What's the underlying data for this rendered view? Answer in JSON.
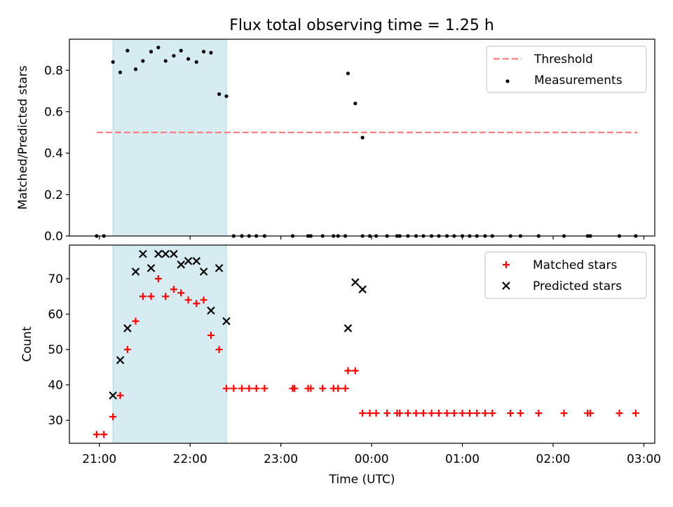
{
  "title": "Flux total observing time = 1.25 h",
  "colors": {
    "shade": "#add8e6",
    "threshold": "#ff7f7f",
    "matched": "#ff0000",
    "predicted": "#000000",
    "measurement": "#000000"
  },
  "chart_data": [
    {
      "type": "scatter",
      "ylabel": "Matched/Predicted stars",
      "ylim": [
        0,
        0.95
      ],
      "yticks": [
        "0.0",
        "0.2",
        "0.4",
        "0.6",
        "0.8"
      ],
      "xlim": [
        20.67,
        27.12
      ],
      "shaded_span": [
        21.15,
        22.4
      ],
      "threshold": {
        "name": "Threshold",
        "y": 0.5,
        "x": [
          20.97,
          26.93
        ]
      },
      "legend": {
        "position": "top-right",
        "entries": [
          "Threshold",
          "Measurements"
        ]
      },
      "series": [
        {
          "name": "Measurements",
          "points": [
            [
              20.97,
              0
            ],
            [
              21.05,
              0
            ],
            [
              21.15,
              0.84
            ],
            [
              21.23,
              0.79
            ],
            [
              21.31,
              0.895
            ],
            [
              21.4,
              0.805
            ],
            [
              21.48,
              0.845
            ],
            [
              21.57,
              0.89
            ],
            [
              21.65,
              0.91
            ],
            [
              21.73,
              0.845
            ],
            [
              21.82,
              0.87
            ],
            [
              21.9,
              0.895
            ],
            [
              21.98,
              0.855
            ],
            [
              22.07,
              0.84
            ],
            [
              22.15,
              0.89
            ],
            [
              22.23,
              0.885
            ],
            [
              22.32,
              0.685
            ],
            [
              22.4,
              0.675
            ],
            [
              22.48,
              0
            ],
            [
              22.57,
              0
            ],
            [
              22.65,
              0
            ],
            [
              22.73,
              0
            ],
            [
              22.82,
              0
            ],
            [
              23.13,
              0
            ],
            [
              23.3,
              0
            ],
            [
              23.33,
              0
            ],
            [
              23.46,
              0
            ],
            [
              23.58,
              0
            ],
            [
              23.63,
              0
            ],
            [
              23.71,
              0
            ],
            [
              23.74,
              0.785
            ],
            [
              23.82,
              0.64
            ],
            [
              23.9,
              0.475
            ],
            [
              23.9,
              0
            ],
            [
              23.98,
              0
            ],
            [
              24.05,
              0
            ],
            [
              24.17,
              0
            ],
            [
              24.28,
              0
            ],
            [
              24.31,
              0
            ],
            [
              24.4,
              0
            ],
            [
              24.49,
              0
            ],
            [
              24.57,
              0
            ],
            [
              24.66,
              0
            ],
            [
              24.74,
              0
            ],
            [
              24.83,
              0
            ],
            [
              24.91,
              0
            ],
            [
              25.0,
              0
            ],
            [
              25.08,
              0
            ],
            [
              25.16,
              0
            ],
            [
              25.25,
              0
            ],
            [
              25.33,
              0
            ],
            [
              25.53,
              0
            ],
            [
              25.64,
              0
            ],
            [
              25.84,
              0
            ],
            [
              26.12,
              0
            ],
            [
              26.38,
              0
            ],
            [
              26.41,
              0
            ],
            [
              26.73,
              0
            ],
            [
              26.91,
              0
            ]
          ]
        }
      ]
    },
    {
      "type": "scatter",
      "ylabel": "Count",
      "xlabel": "Time (UTC)",
      "ylim": [
        23.5,
        79.5
      ],
      "yticks": [
        "30",
        "40",
        "50",
        "60",
        "70"
      ],
      "xlim": [
        20.67,
        27.12
      ],
      "xticks": [
        "21:00",
        "22:00",
        "23:00",
        "00:00",
        "01:00",
        "02:00",
        "03:00"
      ],
      "shaded_span": [
        21.15,
        22.4
      ],
      "legend": {
        "position": "top-right",
        "entries": [
          "Matched stars",
          "Predicted stars"
        ]
      },
      "series": [
        {
          "name": "Matched stars",
          "marker": "plus",
          "points": [
            [
              20.97,
              26
            ],
            [
              21.05,
              26
            ],
            [
              21.15,
              31
            ],
            [
              21.23,
              37
            ],
            [
              21.31,
              50
            ],
            [
              21.4,
              58
            ],
            [
              21.48,
              65
            ],
            [
              21.57,
              65
            ],
            [
              21.65,
              70
            ],
            [
              21.73,
              65
            ],
            [
              21.82,
              67
            ],
            [
              21.9,
              66
            ],
            [
              21.98,
              64
            ],
            [
              22.07,
              63
            ],
            [
              22.15,
              64
            ],
            [
              22.23,
              54
            ],
            [
              22.32,
              50
            ],
            [
              22.4,
              39
            ],
            [
              22.48,
              39
            ],
            [
              22.57,
              39
            ],
            [
              22.65,
              39
            ],
            [
              22.73,
              39
            ],
            [
              22.82,
              39
            ],
            [
              23.13,
              39
            ],
            [
              23.15,
              39
            ],
            [
              23.3,
              39
            ],
            [
              23.33,
              39
            ],
            [
              23.46,
              39
            ],
            [
              23.58,
              39
            ],
            [
              23.63,
              39
            ],
            [
              23.71,
              39
            ],
            [
              23.74,
              44
            ],
            [
              23.82,
              44
            ],
            [
              23.9,
              32
            ],
            [
              23.98,
              32
            ],
            [
              24.05,
              32
            ],
            [
              24.17,
              32
            ],
            [
              24.28,
              32
            ],
            [
              24.31,
              32
            ],
            [
              24.4,
              32
            ],
            [
              24.49,
              32
            ],
            [
              24.57,
              32
            ],
            [
              24.66,
              32
            ],
            [
              24.74,
              32
            ],
            [
              24.83,
              32
            ],
            [
              24.91,
              32
            ],
            [
              25.0,
              32
            ],
            [
              25.08,
              32
            ],
            [
              25.16,
              32
            ],
            [
              25.25,
              32
            ],
            [
              25.33,
              32
            ],
            [
              25.53,
              32
            ],
            [
              25.64,
              32
            ],
            [
              25.84,
              32
            ],
            [
              26.12,
              32
            ],
            [
              26.38,
              32
            ],
            [
              26.41,
              32
            ],
            [
              26.73,
              32
            ],
            [
              26.91,
              32
            ]
          ]
        },
        {
          "name": "Predicted stars",
          "marker": "x",
          "points": [
            [
              21.15,
              37
            ],
            [
              21.23,
              47
            ],
            [
              21.31,
              56
            ],
            [
              21.4,
              72
            ],
            [
              21.48,
              77
            ],
            [
              21.57,
              73
            ],
            [
              21.65,
              77
            ],
            [
              21.73,
              77
            ],
            [
              21.82,
              77
            ],
            [
              21.9,
              74
            ],
            [
              21.98,
              75
            ],
            [
              22.07,
              75
            ],
            [
              22.15,
              72
            ],
            [
              22.23,
              61
            ],
            [
              22.32,
              73
            ],
            [
              22.4,
              58
            ],
            [
              23.74,
              56
            ],
            [
              23.82,
              69
            ],
            [
              23.9,
              67
            ]
          ]
        }
      ]
    }
  ]
}
